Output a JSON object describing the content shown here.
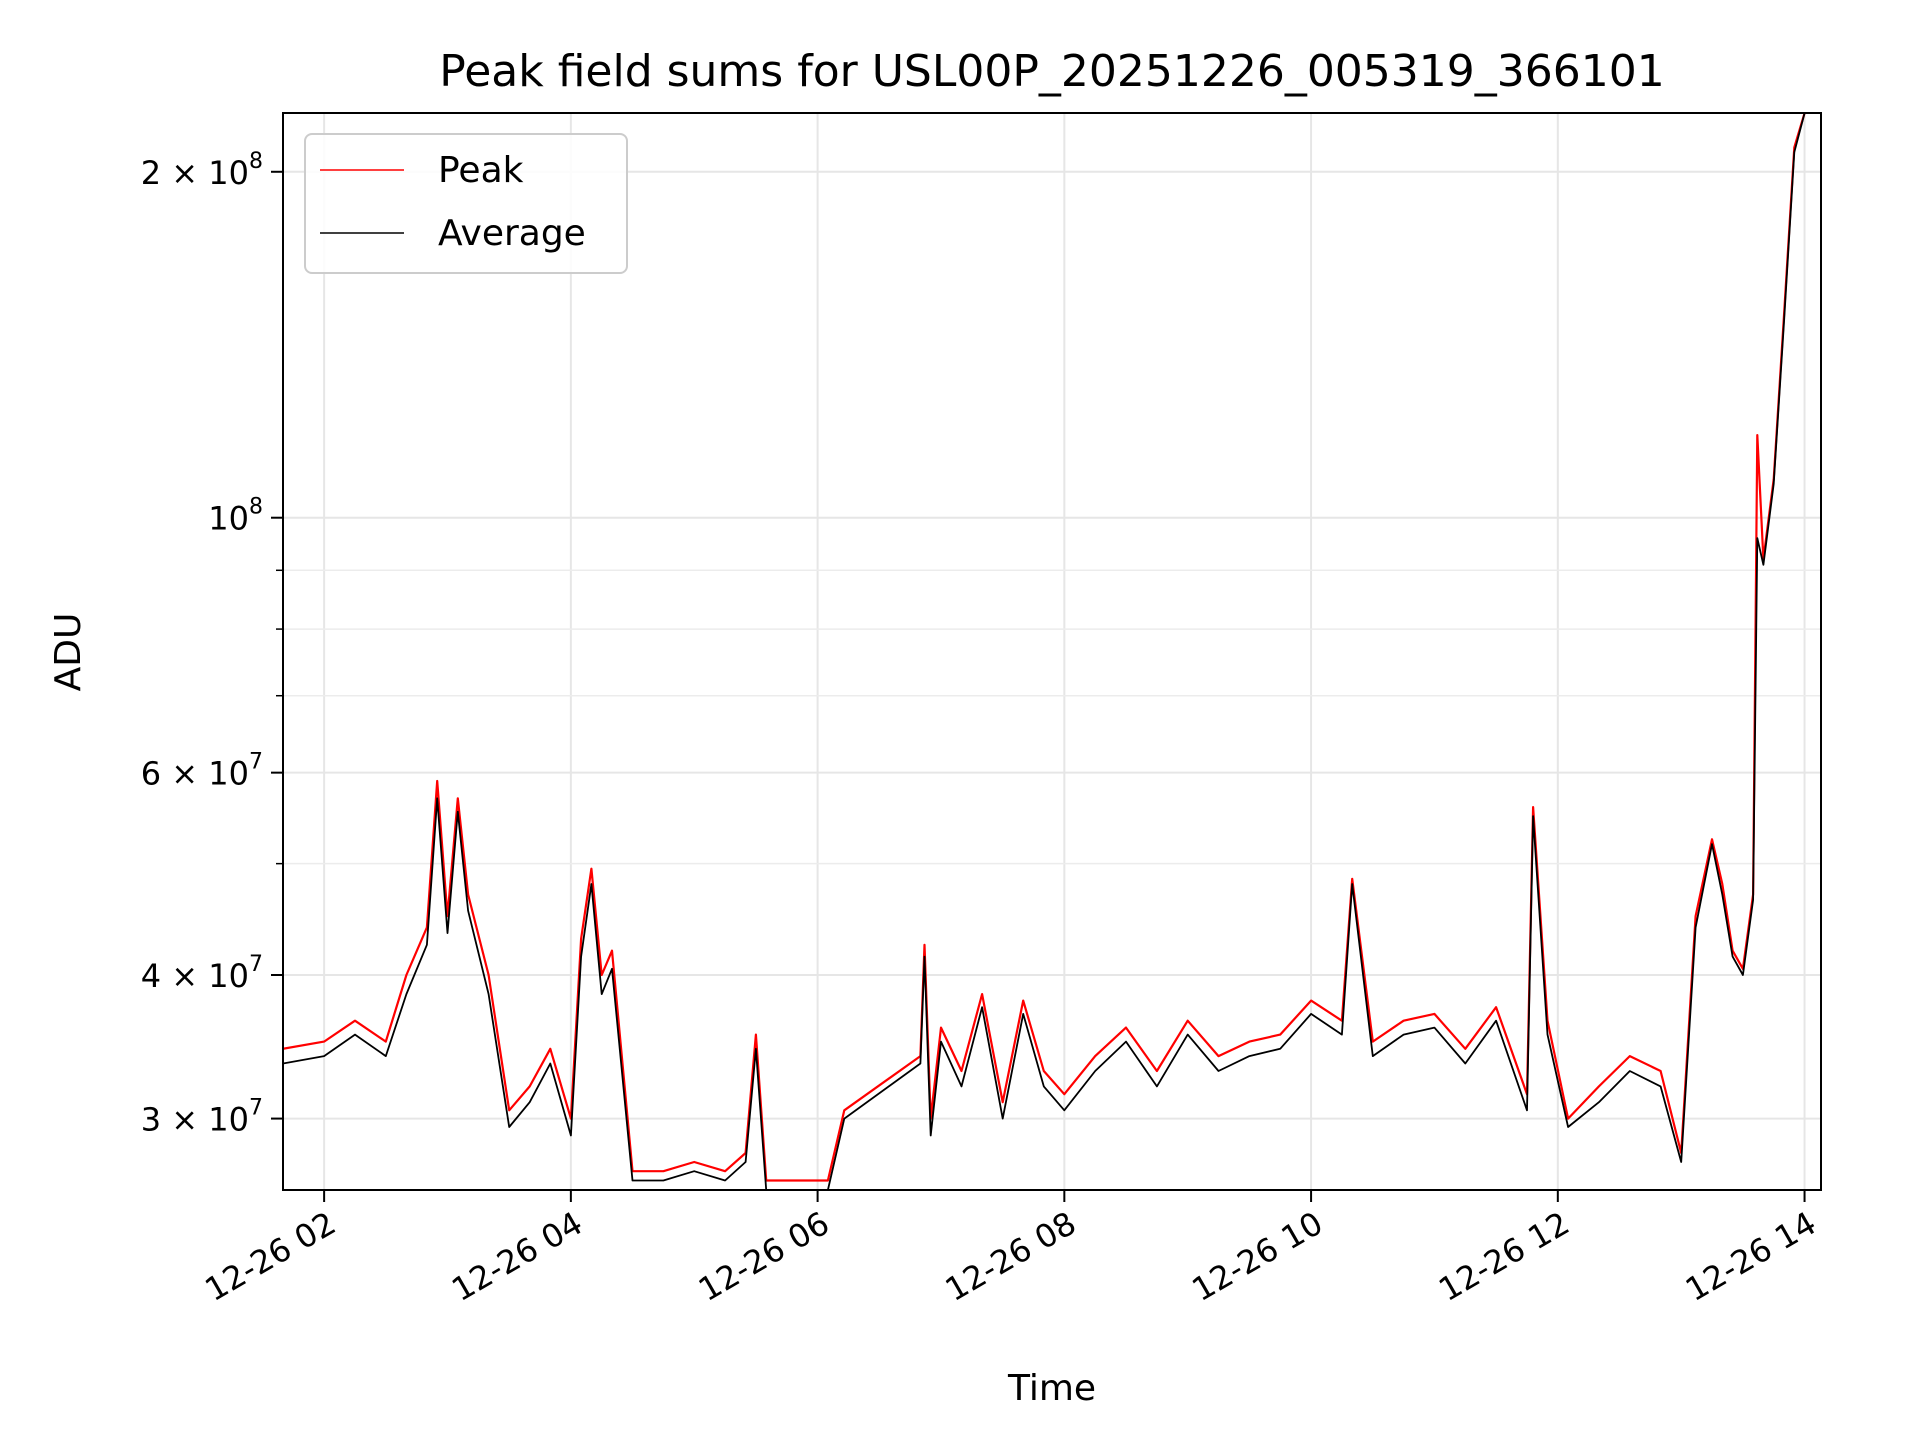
{
  "chart_data": {
    "type": "line",
    "title": "Peak field sums for USL00P_20251226_005319_366101",
    "xlabel": "Time",
    "ylabel": "ADU",
    "yscale": "log",
    "grid": true,
    "legend_position": "top-left",
    "xlim": [
      "12-26 01:40",
      "12-26 14:08"
    ],
    "ylim": [
      26000000,
      225000000
    ],
    "x_ticks": [
      "12-26 02",
      "12-26 04",
      "12-26 06",
      "12-26 08",
      "12-26 10",
      "12-26 12",
      "12-26 14"
    ],
    "y_ticks": [
      {
        "value": 200000000,
        "base": "2 × 10",
        "exp": "8"
      },
      {
        "value": 100000000,
        "base": "10",
        "exp": "8"
      },
      {
        "value": 60000000,
        "base": "6 × 10",
        "exp": "7"
      },
      {
        "value": 40000000,
        "base": "4 × 10",
        "exp": "7"
      },
      {
        "value": 30000000,
        "base": "3 × 10",
        "exp": "7"
      }
    ],
    "series": [
      {
        "name": "Peak",
        "color": "#ff0000",
        "x": [
          "12-26 01:40",
          "12-26 02:00",
          "12-26 02:15",
          "12-26 02:30",
          "12-26 02:40",
          "12-26 02:50",
          "12-26 02:55",
          "12-26 03:00",
          "12-26 03:05",
          "12-26 03:10",
          "12-26 03:20",
          "12-26 03:30",
          "12-26 03:40",
          "12-26 03:50",
          "12-26 04:00",
          "12-26 04:05",
          "12-26 04:10",
          "12-26 04:15",
          "12-26 04:20",
          "12-26 04:30",
          "12-26 04:45",
          "12-26 05:00",
          "12-26 05:15",
          "12-26 05:25",
          "12-26 05:30",
          "12-26 05:35",
          "12-26 05:45",
          "12-26 05:55",
          "12-26 06:05",
          "12-26 06:13",
          "12-26 06:50",
          "12-26 06:52",
          "12-26 06:55",
          "12-26 07:00",
          "12-26 07:10",
          "12-26 07:20",
          "12-26 07:30",
          "12-26 07:40",
          "12-26 07:50",
          "12-26 08:00",
          "12-26 08:15",
          "12-26 08:30",
          "12-26 08:45",
          "12-26 09:00",
          "12-26 09:15",
          "12-26 09:30",
          "12-26 09:45",
          "12-26 10:00",
          "12-26 10:15",
          "12-26 10:20",
          "12-26 10:30",
          "12-26 10:45",
          "12-26 11:00",
          "12-26 11:15",
          "12-26 11:30",
          "12-26 11:45",
          "12-26 11:48",
          "12-26 11:55",
          "12-26 12:05",
          "12-26 12:20",
          "12-26 12:35",
          "12-26 12:50",
          "12-26 13:00",
          "12-26 13:07",
          "12-26 13:15",
          "12-26 13:20",
          "12-26 13:25",
          "12-26 13:30",
          "12-26 13:35",
          "12-26 13:37",
          "12-26 13:40",
          "12-26 13:45",
          "12-26 13:50",
          "12-26 13:55",
          "12-26 14:00"
        ],
        "y": [
          34500000,
          35000000,
          36500000,
          35000000,
          40000000,
          44000000,
          59000000,
          45000000,
          57000000,
          47000000,
          40000000,
          30500000,
          32000000,
          34500000,
          30000000,
          43000000,
          49500000,
          40000000,
          42000000,
          27000000,
          27000000,
          27500000,
          27000000,
          28000000,
          35500000,
          26500000,
          26500000,
          26500000,
          26500000,
          30500000,
          34000000,
          42500000,
          30000000,
          36000000,
          33000000,
          38500000,
          31000000,
          38000000,
          33000000,
          31500000,
          34000000,
          36000000,
          33000000,
          36500000,
          34000000,
          35000000,
          35500000,
          38000000,
          36500000,
          48500000,
          35000000,
          36500000,
          37000000,
          34500000,
          37500000,
          31500000,
          56000000,
          36500000,
          30000000,
          32000000,
          34000000,
          33000000,
          28000000,
          45000000,
          52500000,
          48000000,
          42000000,
          40500000,
          47000000,
          118000000,
          92000000,
          108000000,
          150000000,
          210000000,
          225000000
        ]
      },
      {
        "name": "Average",
        "color": "#000000",
        "x": [
          "12-26 01:40",
          "12-26 02:00",
          "12-26 02:15",
          "12-26 02:30",
          "12-26 02:40",
          "12-26 02:50",
          "12-26 02:55",
          "12-26 03:00",
          "12-26 03:05",
          "12-26 03:10",
          "12-26 03:20",
          "12-26 03:30",
          "12-26 03:40",
          "12-26 03:50",
          "12-26 04:00",
          "12-26 04:05",
          "12-26 04:10",
          "12-26 04:15",
          "12-26 04:20",
          "12-26 04:30",
          "12-26 04:45",
          "12-26 05:00",
          "12-26 05:15",
          "12-26 05:25",
          "12-26 05:30",
          "12-26 05:35",
          "12-26 05:45",
          "12-26 05:55",
          "12-26 06:05",
          "12-26 06:13",
          "12-26 06:50",
          "12-26 06:52",
          "12-26 06:55",
          "12-26 07:00",
          "12-26 07:10",
          "12-26 07:20",
          "12-26 07:30",
          "12-26 07:40",
          "12-26 07:50",
          "12-26 08:00",
          "12-26 08:15",
          "12-26 08:30",
          "12-26 08:45",
          "12-26 09:00",
          "12-26 09:15",
          "12-26 09:30",
          "12-26 09:45",
          "12-26 10:00",
          "12-26 10:15",
          "12-26 10:20",
          "12-26 10:30",
          "12-26 10:45",
          "12-26 11:00",
          "12-26 11:15",
          "12-26 11:30",
          "12-26 11:45",
          "12-26 11:48",
          "12-26 11:55",
          "12-26 12:05",
          "12-26 12:20",
          "12-26 12:35",
          "12-26 12:50",
          "12-26 13:00",
          "12-26 13:07",
          "12-26 13:15",
          "12-26 13:20",
          "12-26 13:25",
          "12-26 13:30",
          "12-26 13:35",
          "12-26 13:37",
          "12-26 13:40",
          "12-26 13:45",
          "12-26 13:50",
          "12-26 13:55",
          "12-26 14:00"
        ],
        "y": [
          33500000,
          34000000,
          35500000,
          34000000,
          38500000,
          42500000,
          57000000,
          43500000,
          55500000,
          45500000,
          38500000,
          29500000,
          31000000,
          33500000,
          29000000,
          41500000,
          48000000,
          38500000,
          40500000,
          26500000,
          26500000,
          27000000,
          26500000,
          27500000,
          34500000,
          26000000,
          26000000,
          26000000,
          26000000,
          30000000,
          33500000,
          41500000,
          29000000,
          35000000,
          32000000,
          37500000,
          30000000,
          37000000,
          32000000,
          30500000,
          33000000,
          35000000,
          32000000,
          35500000,
          33000000,
          34000000,
          34500000,
          37000000,
          35500000,
          48000000,
          34000000,
          35500000,
          36000000,
          33500000,
          36500000,
          30500000,
          55000000,
          35500000,
          29500000,
          31000000,
          33000000,
          32000000,
          27500000,
          44000000,
          52000000,
          47000000,
          41500000,
          40000000,
          46500000,
          96000000,
          91000000,
          107000000,
          148000000,
          208000000,
          225000000
        ]
      }
    ]
  }
}
